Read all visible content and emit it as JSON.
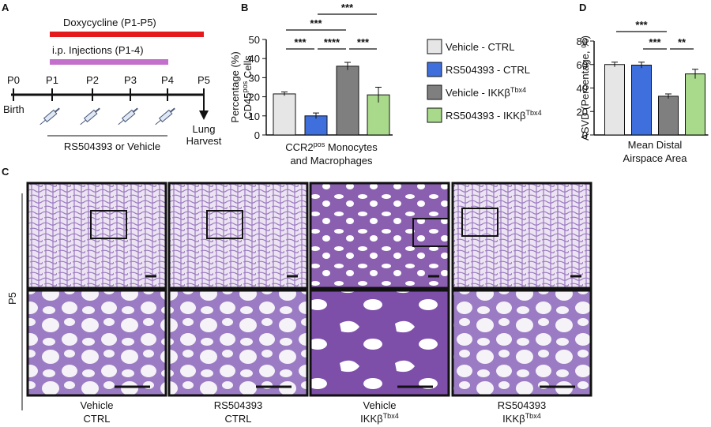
{
  "panel_labels": [
    "A",
    "B",
    "C",
    "D"
  ],
  "timeline": {
    "doxycycline": "Doxycycline (P1-P5)",
    "injections": "i.p. Injections (P1-4)",
    "days": [
      "P0",
      "P1",
      "P2",
      "P3",
      "P4",
      "P5"
    ],
    "start": "Birth",
    "end": [
      "Lung",
      "Harvest"
    ],
    "treatment": "RS504393 or Vehicle"
  },
  "legend": [
    {
      "label": [
        {
          "t": "Vehicle - CTRL"
        }
      ],
      "color": "#e6e6e6"
    },
    {
      "label": [
        {
          "t": "RS504393 - CTRL"
        }
      ],
      "color": "#3f6fdc"
    },
    {
      "label": [
        {
          "t": "Vehicle - IKKβ"
        },
        {
          "t": "Tbx4",
          "sup": true
        }
      ],
      "color": "#7f7f7f"
    },
    {
      "label": [
        {
          "t": "RS504393 - IKKβ"
        },
        {
          "t": "Tbx4",
          "sup": true
        }
      ],
      "color": "#a9d98b"
    }
  ],
  "chart_data": [
    {
      "type": "bar",
      "y_label": [
        [
          {
            "t": "Percentage (%)"
          }
        ],
        [
          {
            "t": "CD45"
          },
          {
            "t": "pos",
            "sup": true
          },
          {
            "t": " Cells"
          }
        ]
      ],
      "x_label": [
        [
          {
            "t": "CCR2"
          },
          {
            "t": "pos",
            "sup": true
          },
          {
            "t": " Monocytes"
          }
        ],
        [
          {
            "t": "and Macrophages"
          }
        ]
      ],
      "values": [
        21.5,
        10,
        36,
        21
      ],
      "errors": [
        1,
        1.5,
        2,
        4
      ],
      "ylim": [
        0,
        50
      ],
      "yticks": [
        0,
        10,
        20,
        30,
        40,
        50
      ],
      "significance": [
        "***",
        "***",
        "***",
        "****",
        "***"
      ]
    },
    {
      "type": "bar",
      "y_label": [
        [
          {
            "t": "ASVD (Percentage, %)"
          }
        ]
      ],
      "x_label": [
        [
          {
            "t": "Mean Distal"
          }
        ],
        [
          {
            "t": "Airspace Area"
          }
        ]
      ],
      "values": [
        60,
        59.5,
        33,
        52
      ],
      "errors": [
        2,
        2.5,
        2,
        4
      ],
      "ylim": [
        0,
        80
      ],
      "yticks": [
        0,
        20,
        40,
        60,
        80
      ],
      "significance": [
        "***",
        "***",
        "**"
      ]
    }
  ],
  "histology": {
    "row_label": "P5",
    "captions": [
      [
        [
          {
            "t": "Vehicle"
          }
        ],
        [
          {
            "t": "CTRL"
          }
        ]
      ],
      [
        [
          {
            "t": "RS504393"
          }
        ],
        [
          {
            "t": "CTRL"
          }
        ]
      ],
      [
        [
          {
            "t": "Vehicle"
          }
        ],
        [
          {
            "t": "IKKβ"
          },
          {
            "t": "Tbx4",
            "sup": true
          }
        ]
      ],
      [
        [
          {
            "t": "RS504393"
          }
        ],
        [
          {
            "t": "IKKβ"
          },
          {
            "t": "Tbx4",
            "sup": true
          }
        ]
      ]
    ]
  }
}
